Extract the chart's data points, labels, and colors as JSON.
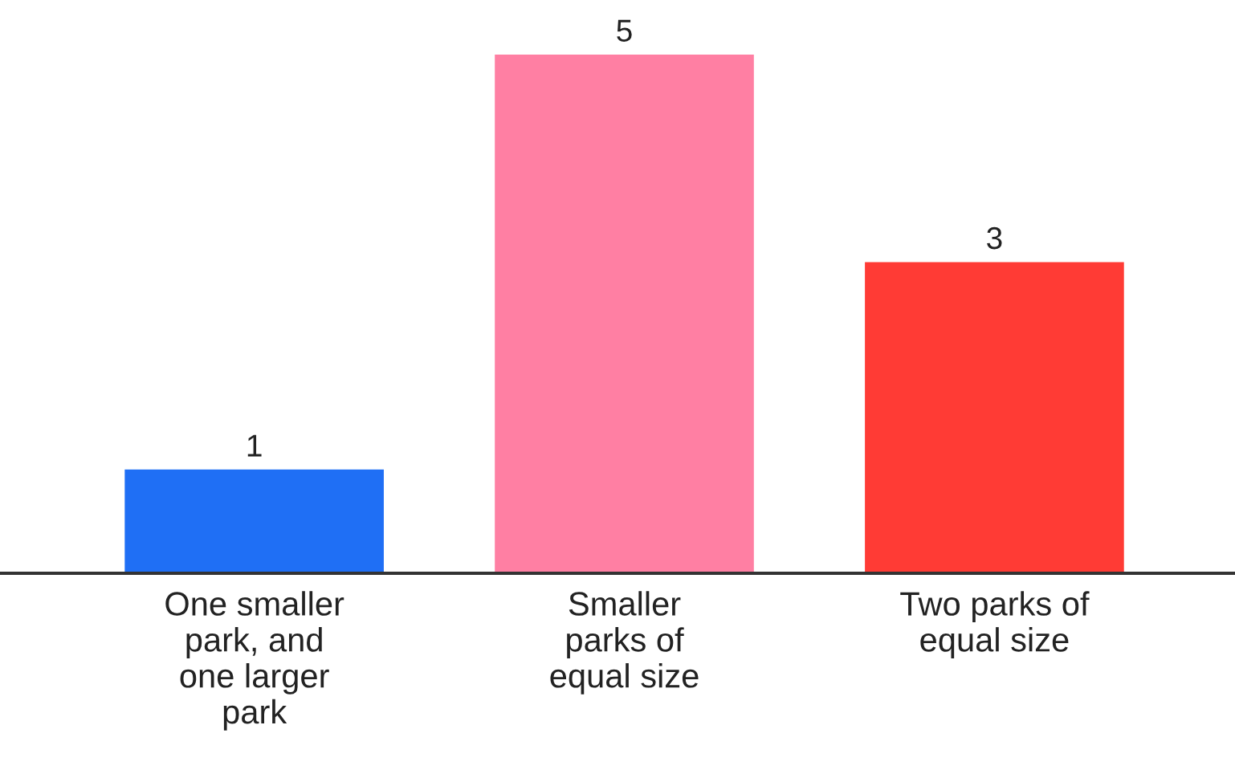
{
  "chart_data": {
    "type": "bar",
    "categories": [
      "One smaller\npark, and\none larger\npark",
      "Smaller\nparks of\nequal size",
      "Two parks of\nequal size"
    ],
    "values": [
      1,
      5,
      3
    ],
    "colors": [
      "#1f6ff5",
      "#ff7fa3",
      "#ff3b35"
    ],
    "data_labels": true,
    "tick_labels": "x"
  }
}
